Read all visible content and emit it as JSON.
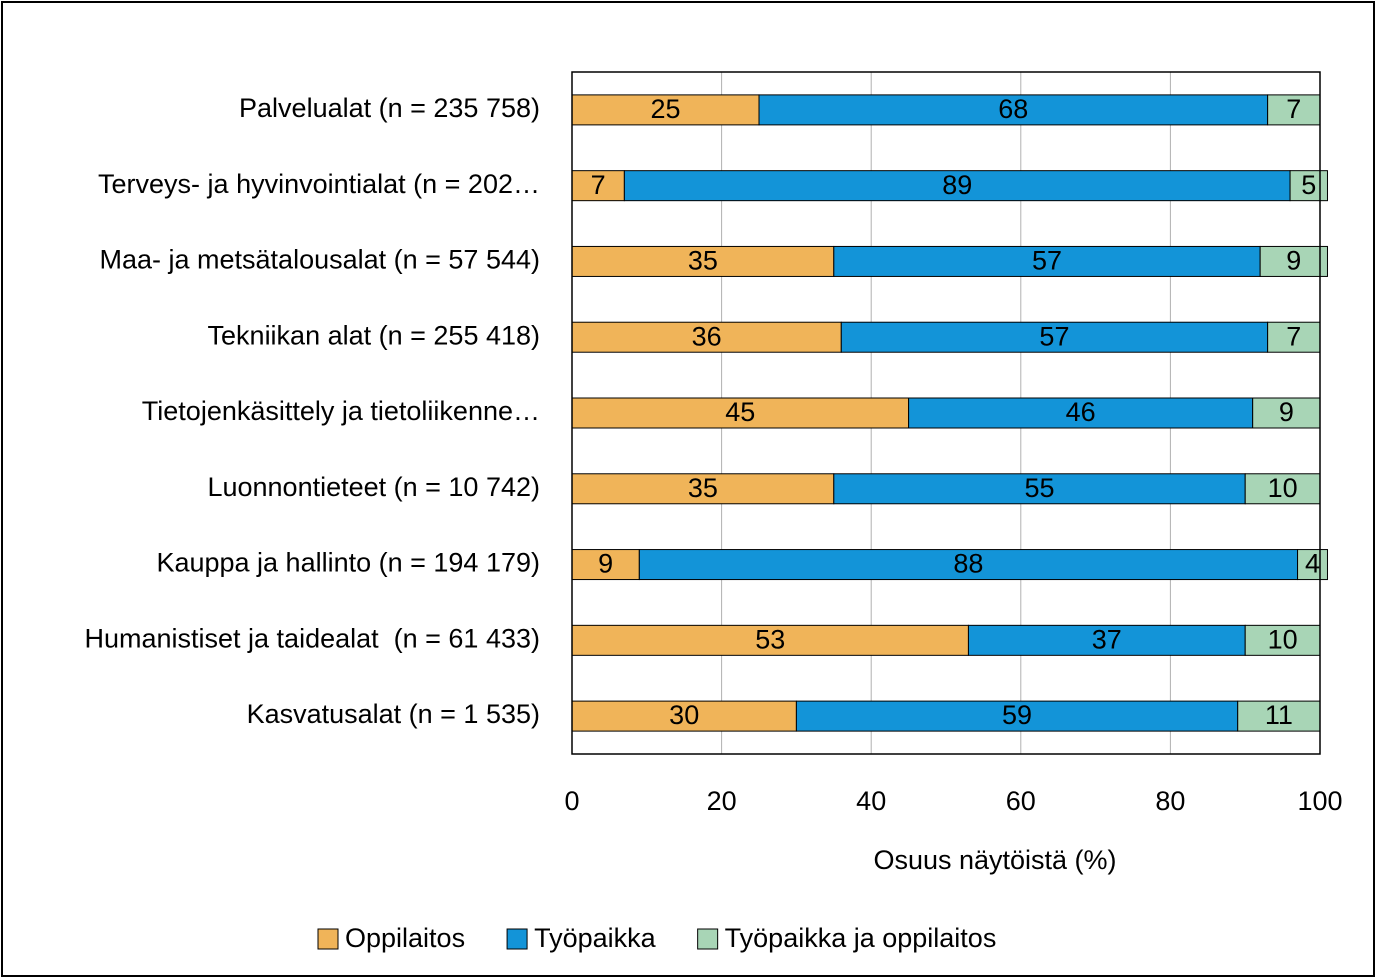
{
  "chart_data": {
    "type": "stacked-barh",
    "categories": [
      "Palvelualat (n = 235 758)",
      "Terveys- ja hyvinvointialat (n = 202…",
      "Maa- ja metsätalousalat (n = 57 544)",
      "Tekniikan alat (n = 255 418)",
      "Tietojenkäsittely ja tietoliikenne…",
      "Luonnontieteet (n = 10 742)",
      "Kauppa ja hallinto (n = 194 179)",
      "Humanistiset ja taidealat  (n = 61 433)",
      "Kasvatusalat (n = 1 535)"
    ],
    "series": [
      {
        "name": "Oppilaitos",
        "color": "#f0b459",
        "values": [
          25,
          7,
          35,
          36,
          45,
          35,
          9,
          53,
          30
        ]
      },
      {
        "name": "Työpaikka",
        "color": "#1394d8",
        "values": [
          68,
          89,
          57,
          57,
          46,
          55,
          88,
          37,
          59
        ]
      },
      {
        "name": "Työpaikka ja oppilaitos",
        "color": "#a8d5b6",
        "values": [
          7,
          5,
          9,
          7,
          9,
          10,
          4,
          10,
          11
        ]
      }
    ],
    "xlabel": "Osuus näytöistä (%)",
    "xlim": [
      0,
      100
    ],
    "xticks": [
      0,
      20,
      40,
      60,
      80,
      100
    ],
    "grid": true,
    "legend": "bottom"
  }
}
